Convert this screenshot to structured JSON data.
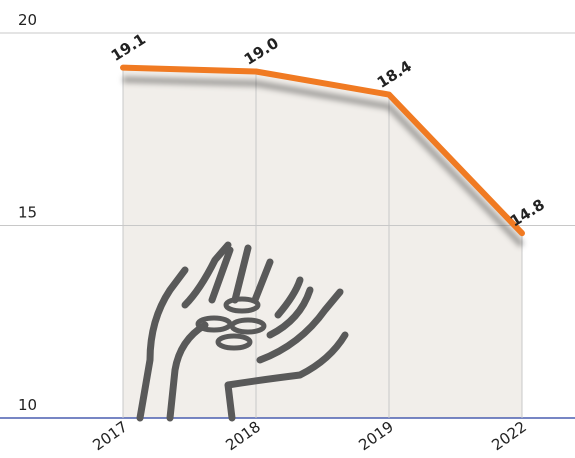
{
  "chart_data": {
    "type": "line",
    "categories": [
      "2017",
      "2018",
      "2019",
      "2022"
    ],
    "values": [
      19.1,
      19.0,
      18.4,
      14.8
    ],
    "value_labels": [
      "19.1",
      "19.0",
      "18.4",
      "14.8"
    ],
    "color": "#f07a22",
    "area_color": "#f1eeea",
    "ylim": [
      10,
      20
    ],
    "yticks": [
      10,
      15,
      20
    ],
    "grid": true
  }
}
